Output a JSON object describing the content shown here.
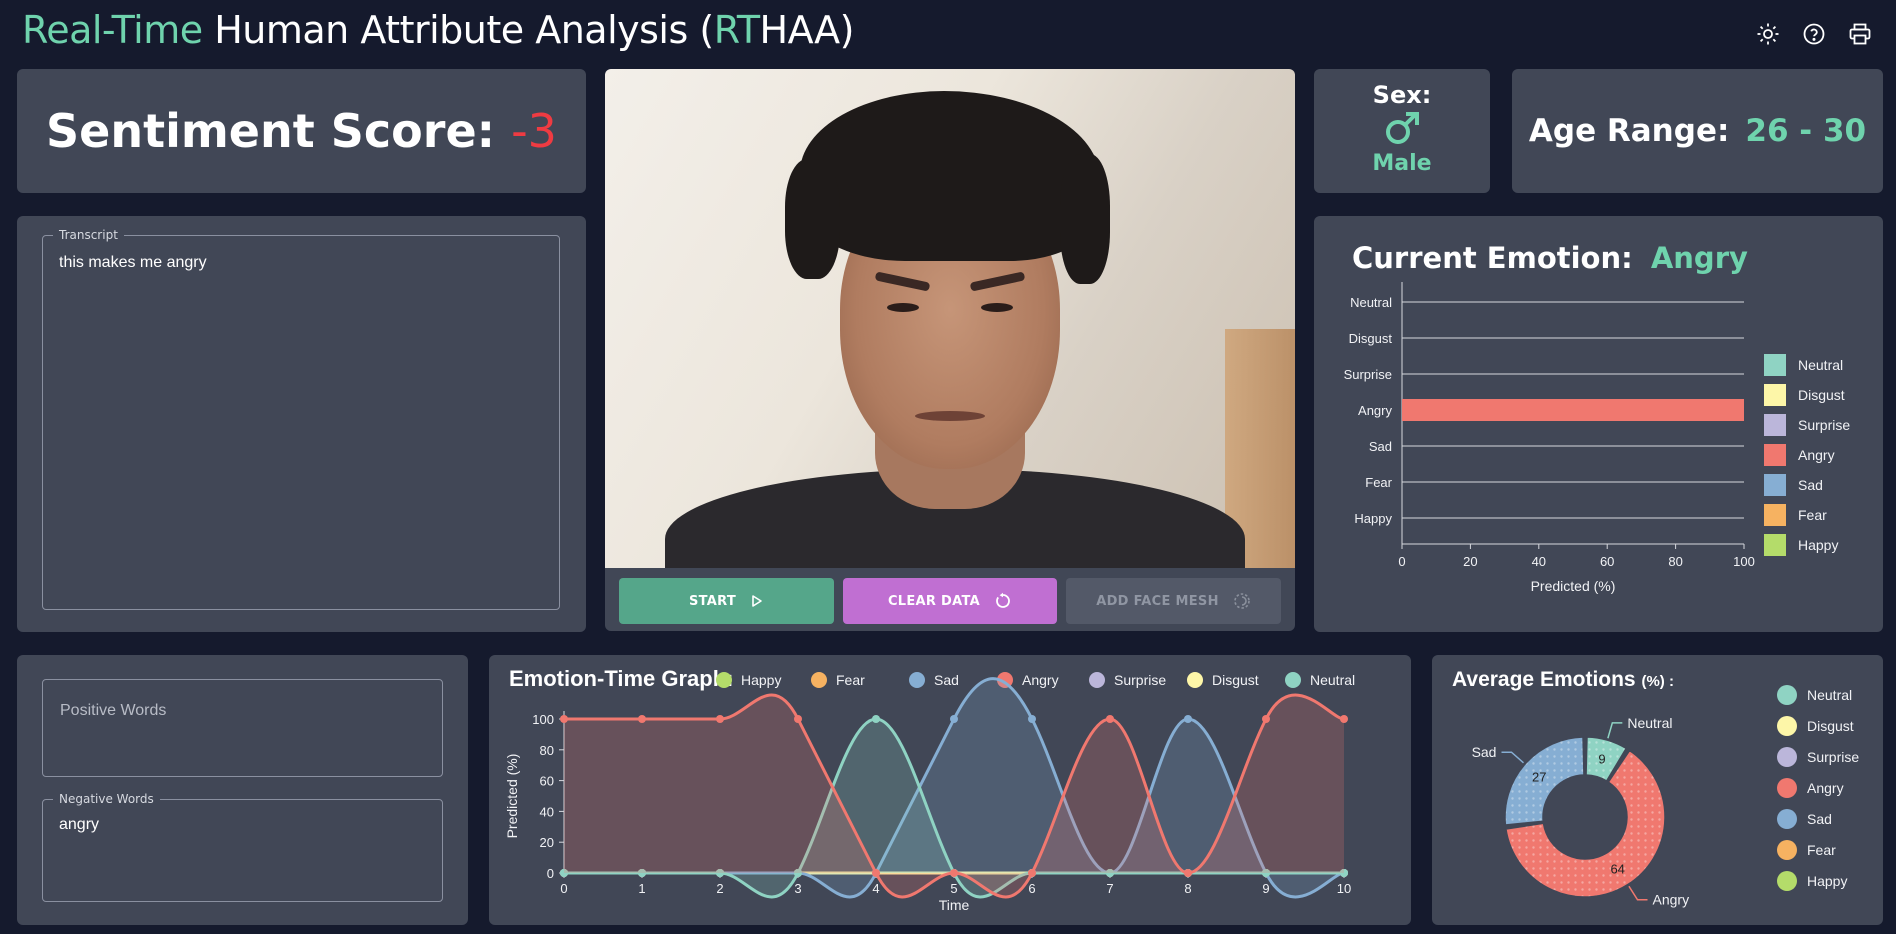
{
  "header": {
    "title_accent_1": "Real-Time",
    "title_mid": " Human Attribute Analysis (",
    "title_accent_2": "RT",
    "title_end": "HAA)"
  },
  "sentiment": {
    "label": "Sentiment Score:",
    "value": "-3"
  },
  "transcript": {
    "legend": "Transcript",
    "text": "this makes me angry"
  },
  "words": {
    "positive_placeholder": "Positive Words",
    "negative_legend": "Negative Words",
    "negative_text": "angry"
  },
  "controls": {
    "start_label": "START",
    "clear_label": "CLEAR DATA",
    "mesh_label": "ADD FACE MESH"
  },
  "sex": {
    "label": "Sex:",
    "value": "Male",
    "icon": "male-symbol-icon"
  },
  "age": {
    "label": "Age Range:",
    "value": "26 - 30"
  },
  "current_emotion": {
    "label": "Current Emotion:",
    "value": "Angry"
  },
  "colors": {
    "accent": "#6fd3ad",
    "negative": "#ef3b42",
    "Neutral": "#8fd3c3",
    "Disgust": "#fdf6a8",
    "Surprise": "#bbb6da",
    "Angry": "#f0786f",
    "Sad": "#86aed3",
    "Fear": "#f6b261",
    "Happy": "#b4dc6a",
    "start_btn": "#55a68a",
    "clear_btn": "#c06fd2",
    "mesh_btn": "#535968"
  },
  "chart_data": [
    {
      "type": "bar",
      "orientation": "horizontal",
      "categories": [
        "Neutral",
        "Disgust",
        "Surprise",
        "Angry",
        "Sad",
        "Fear",
        "Happy"
      ],
      "values": [
        0,
        0,
        0,
        100,
        0,
        0,
        0
      ],
      "xlabel": "Predicted (%)",
      "xlim": [
        0,
        100
      ],
      "xticks": [
        "0",
        "20",
        "40",
        "60",
        "80",
        "100"
      ],
      "legend": [
        "Neutral",
        "Disgust",
        "Surprise",
        "Angry",
        "Sad",
        "Fear",
        "Happy"
      ],
      "legend_position": "right"
    },
    {
      "type": "area",
      "title": "Emotion-Time Graph:",
      "xlabel": "Time",
      "ylabel": "Predicted (%)",
      "x": [
        0,
        1,
        2,
        3,
        4,
        5,
        6,
        7,
        8,
        9,
        10
      ],
      "ylim": [
        0,
        100
      ],
      "yticks": [
        "0",
        "20",
        "40",
        "60",
        "80",
        "100"
      ],
      "xticks": [
        "0",
        "1",
        "2",
        "3",
        "4",
        "5",
        "6",
        "7",
        "8",
        "9",
        "10"
      ],
      "legend_position": "top",
      "series": [
        {
          "name": "Happy",
          "values": [
            0,
            0,
            0,
            0,
            0,
            0,
            0,
            0,
            0,
            0,
            0
          ]
        },
        {
          "name": "Fear",
          "values": [
            0,
            0,
            0,
            0,
            0,
            0,
            0,
            0,
            0,
            0,
            0
          ]
        },
        {
          "name": "Sad",
          "values": [
            0,
            0,
            0,
            0,
            0,
            100,
            100,
            0,
            100,
            0,
            0
          ]
        },
        {
          "name": "Angry",
          "values": [
            100,
            100,
            100,
            100,
            0,
            0,
            0,
            100,
            0,
            100,
            100
          ]
        },
        {
          "name": "Surprise",
          "values": [
            0,
            0,
            0,
            0,
            0,
            0,
            0,
            0,
            0,
            0,
            0
          ]
        },
        {
          "name": "Disgust",
          "values": [
            0,
            0,
            0,
            0,
            0,
            0,
            0,
            0,
            0,
            0,
            0
          ]
        },
        {
          "name": "Neutral",
          "values": [
            0,
            0,
            0,
            0,
            100,
            0,
            0,
            0,
            0,
            0,
            0
          ]
        }
      ]
    },
    {
      "type": "pie",
      "subtype": "donut",
      "title": "Average Emotions",
      "title_suffix": "(%) :",
      "slices": [
        {
          "name": "Neutral",
          "value": 9
        },
        {
          "name": "Angry",
          "value": 64
        },
        {
          "name": "Sad",
          "value": 27
        }
      ],
      "legend": [
        "Neutral",
        "Disgust",
        "Surprise",
        "Angry",
        "Sad",
        "Fear",
        "Happy"
      ],
      "legend_position": "right"
    }
  ]
}
